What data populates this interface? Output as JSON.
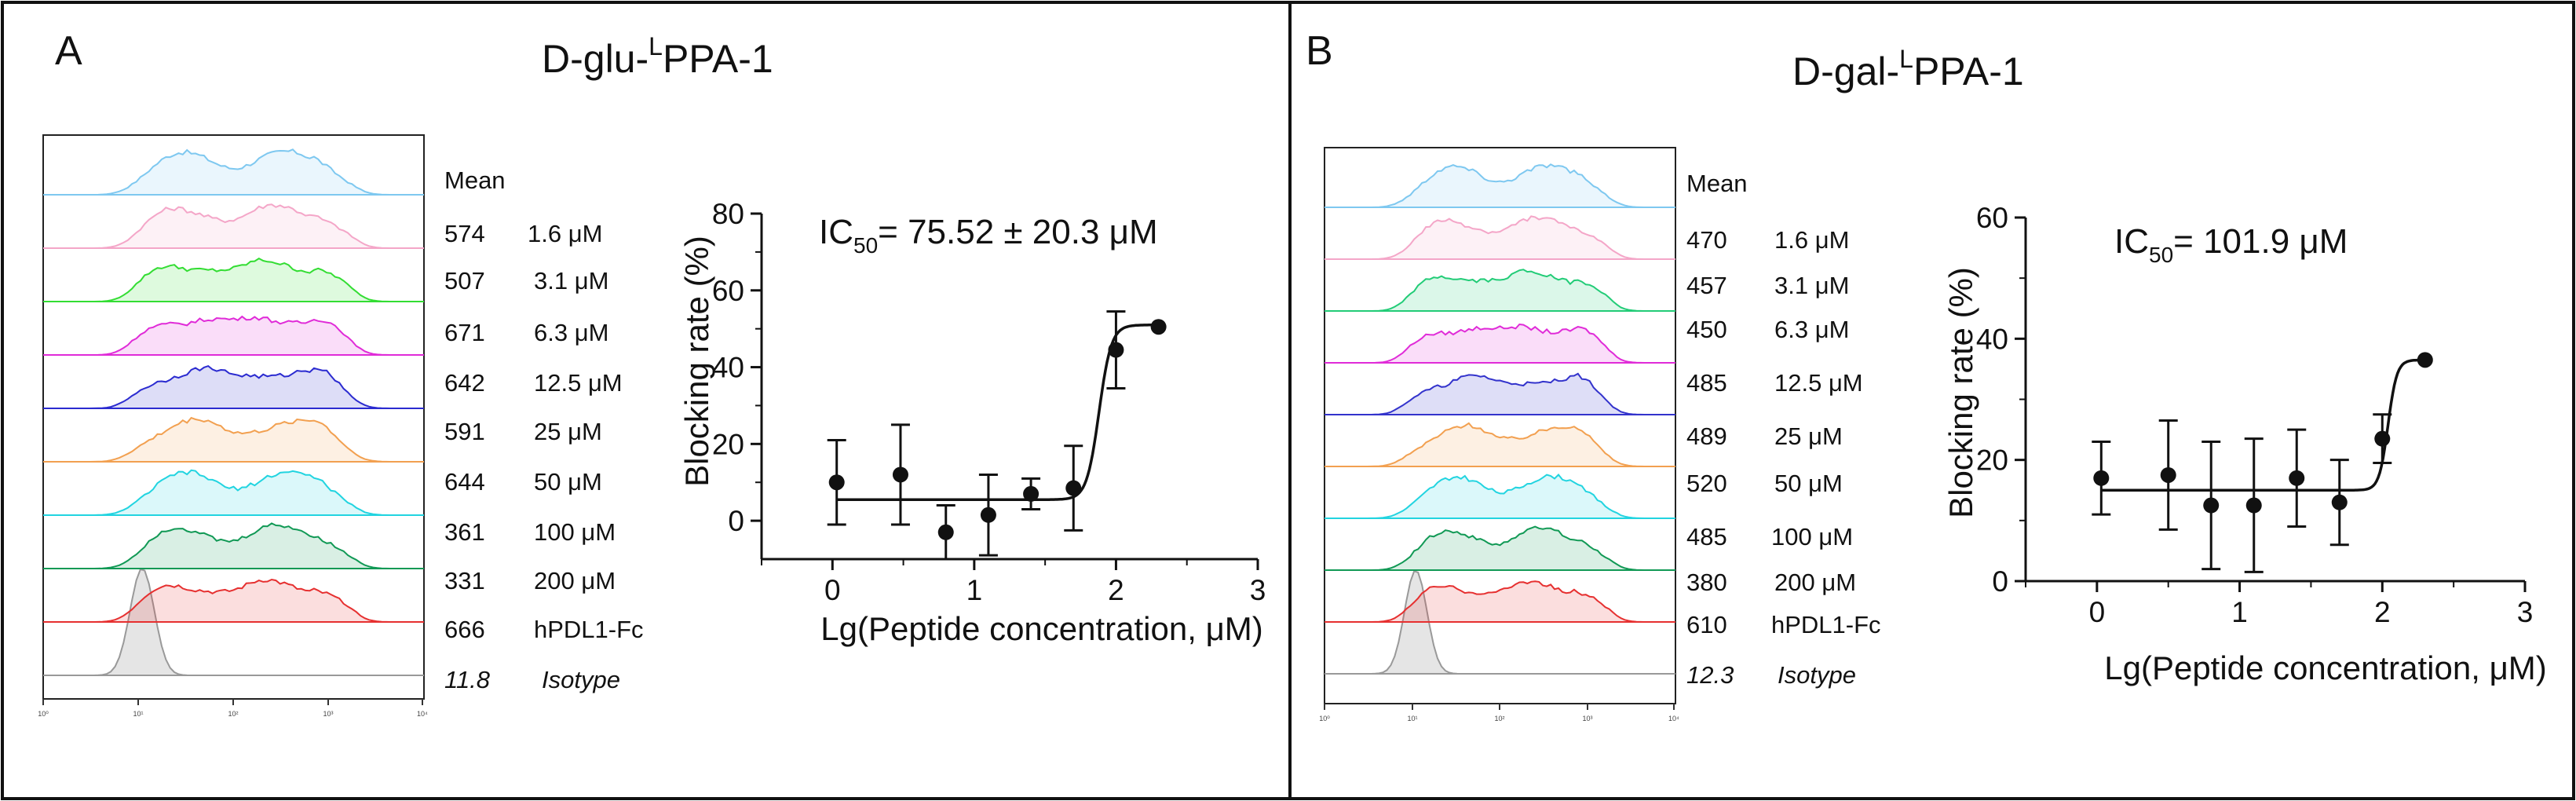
{
  "panels": [
    {
      "letter": "A",
      "title_prefix": "D-glu-",
      "title_superscript": "L",
      "title_suffix": "PPA-1",
      "histogram": {
        "table_header": "Mean",
        "axis_ticks": [
          "10⁰",
          "10¹",
          "10²",
          "10³",
          "10⁴"
        ],
        "rows": [
          {
            "mean": "574",
            "label": "1.6 μM",
            "color": "#7ec8f0"
          },
          {
            "mean": "507",
            "label": "3.1 μM",
            "color": "#f4a6c8"
          },
          {
            "mean": "671",
            "label": "6.3 μM",
            "color": "#33dd33"
          },
          {
            "mean": "642",
            "label": "12.5 μM",
            "color": "#e02bd8"
          },
          {
            "mean": "591",
            "label": "25 μM",
            "color": "#2b2bd0"
          },
          {
            "mean": "644",
            "label": "50 μM",
            "color": "#f2a050"
          },
          {
            "mean": "361",
            "label": "100 μM",
            "color": "#22d4e0"
          },
          {
            "mean": "331",
            "label": "200 μM",
            "color": "#119955"
          },
          {
            "mean": "666",
            "label": "hPDL1-Fc",
            "color": "#e63030"
          },
          {
            "mean": "11.8",
            "label": "Isotype",
            "color": "#999999",
            "italic": true
          }
        ]
      },
      "chart_data": {
        "type": "scatter",
        "title": "",
        "ic50_label": "IC",
        "ic50_sub": "50",
        "ic50_value": "= 75.52 ± 20.3 μM",
        "xlabel": "Lg(Peptide concentration, μM)",
        "ylabel": "Blocking rate (%)",
        "xlim": [
          -0.5,
          3
        ],
        "ylim": [
          -10,
          80
        ],
        "xticks": [
          0,
          1,
          2,
          3
        ],
        "yticks": [
          0,
          20,
          40,
          60,
          80
        ],
        "x": [
          0.03,
          0.48,
          0.8,
          1.1,
          1.4,
          1.7,
          2.0,
          2.3
        ],
        "y": [
          10,
          12,
          -3,
          1.5,
          7,
          8.5,
          44.5,
          50.5
        ],
        "err": [
          11,
          13,
          7,
          10.5,
          4,
          11,
          10,
          0
        ],
        "fit": {
          "bottom": 5.5,
          "top": 51,
          "logic50": 1.88,
          "hill": 10
        }
      }
    },
    {
      "letter": "B",
      "title_prefix": "D-gal-",
      "title_superscript": "L",
      "title_suffix": "PPA-1",
      "histogram": {
        "table_header": "Mean",
        "axis_ticks": [
          "10⁰",
          "10¹",
          "10²",
          "10³",
          "10⁴"
        ],
        "rows": [
          {
            "mean": "470",
            "label": "1.6 μM",
            "color": "#7ec8f0"
          },
          {
            "mean": "457",
            "label": "3.1 μM",
            "color": "#f4a6c8"
          },
          {
            "mean": "450",
            "label": "6.3 μM",
            "color": "#22cc77"
          },
          {
            "mean": "485",
            "label": "12.5 μM",
            "color": "#e02bd8"
          },
          {
            "mean": "489",
            "label": "25 μM",
            "color": "#3333cc"
          },
          {
            "mean": "520",
            "label": "50 μM",
            "color": "#f2a050"
          },
          {
            "mean": "485",
            "label": "100 μM",
            "color": "#22d4e0"
          },
          {
            "mean": "380",
            "label": "200 μM",
            "color": "#119955"
          },
          {
            "mean": "610",
            "label": "hPDL1-Fc",
            "color": "#e63030"
          },
          {
            "mean": "12.3",
            "label": "Isotype",
            "color": "#999999",
            "italic": true
          }
        ]
      },
      "chart_data": {
        "type": "scatter",
        "title": "",
        "ic50_label": "IC",
        "ic50_sub": "50",
        "ic50_value": "= 101.9 μM",
        "xlabel": "Lg(Peptide concentration, μM)",
        "ylabel": "Blocking rate (%)",
        "xlim": [
          -0.5,
          3
        ],
        "ylim": [
          0,
          60
        ],
        "xticks": [
          0,
          1,
          2,
          3
        ],
        "yticks": [
          0,
          20,
          40,
          60
        ],
        "x": [
          0.03,
          0.5,
          0.8,
          1.1,
          1.4,
          1.7,
          2.0,
          2.3
        ],
        "y": [
          17,
          17.5,
          12.5,
          12.5,
          17,
          13,
          23.5,
          36.5
        ],
        "err": [
          6,
          9,
          10.5,
          11,
          8,
          7,
          4,
          0
        ],
        "fit": {
          "bottom": 15,
          "top": 36.5,
          "logic50": 2.04,
          "hill": 14
        }
      }
    }
  ]
}
